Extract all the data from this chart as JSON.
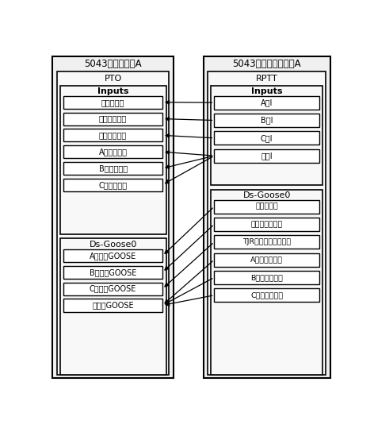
{
  "title_left": "5043断路器保护A",
  "title_right": "5043断路器智能终端A",
  "left_section1_title": "PTO",
  "left_section1_group": "Inputs",
  "left_inputs": [
    "闭锁重合闸",
    "重合闸压力低",
    "三相跳闸开入",
    "A相跳闸位置",
    "B相跳闸位置",
    "C相跳闸位置"
  ],
  "left_section2_group": "Ds-Goose0",
  "left_goose": [
    "A相跳闸GOOSE",
    "B相跳闸GOOSE",
    "C相跳闸GOOSE",
    "重合闸GOOSE"
  ],
  "right_section1_title": "RPTT",
  "right_section1_group": "Inputs",
  "right_inputs": [
    "A跳I",
    "B跳I",
    "C跳I",
    "重合I"
  ],
  "right_section2_group": "Ds-Goose0",
  "right_goose": [
    "闭锁重合闸",
    "压力低禁重合闸",
    "TJR三跳不归重合失灵",
    "A相断路器位置",
    "B相断路器位置",
    "C相断路器位置"
  ],
  "conn_left_idx": [
    0,
    1,
    2,
    3,
    4,
    5,
    6,
    7,
    8,
    9,
    9,
    9
  ],
  "conn_right_idx": [
    0,
    1,
    2,
    3,
    3,
    3,
    4,
    5,
    6,
    7,
    8,
    9
  ],
  "bg_color": "#ffffff",
  "box_color": "#000000",
  "text_color": "#000000",
  "line_color": "#000000",
  "figw": 4.72,
  "figh": 5.44,
  "dpi": 100
}
